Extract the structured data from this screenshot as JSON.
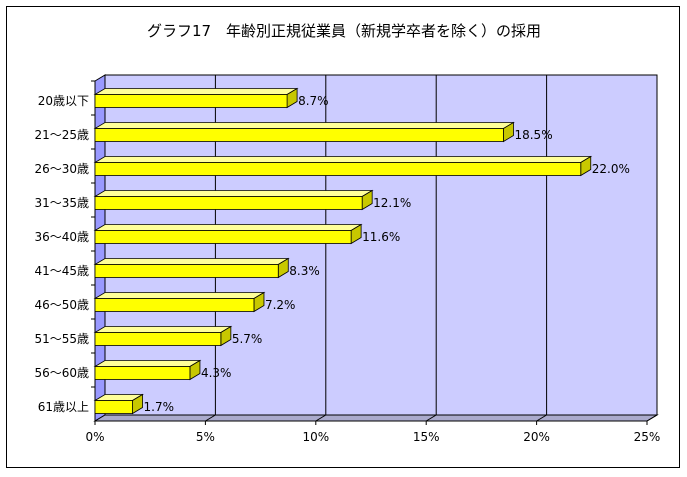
{
  "chart_data": {
    "type": "bar",
    "orientation": "horizontal",
    "title": "グラフ17　年齢別正規従業員（新規学卒者を除く）の採用",
    "categories": [
      "20歳以下",
      "21～25歳",
      "26～30歳",
      "31～35歳",
      "36～40歳",
      "41～45歳",
      "46～50歳",
      "51～55歳",
      "56～60歳",
      "61歳以上"
    ],
    "values": [
      8.7,
      18.5,
      22.0,
      12.1,
      11.6,
      8.3,
      7.2,
      5.7,
      4.3,
      1.7
    ],
    "value_labels": [
      "8.7%",
      "18.5%",
      "22.0%",
      "12.1%",
      "11.6%",
      "8.3%",
      "7.2%",
      "5.7%",
      "4.3%",
      "1.7%"
    ],
    "xticks": [
      "0%",
      "5%",
      "10%",
      "15%",
      "20%",
      "25%"
    ],
    "xlim": [
      0,
      25
    ],
    "grid": true,
    "colors": {
      "bar": "#ffff00",
      "bar_side": "#c8c800",
      "bar_top": "#ffff99",
      "plot_bg": "#ccccff",
      "plot_wall": "#9999ff",
      "floor": "#aaaacc"
    }
  }
}
